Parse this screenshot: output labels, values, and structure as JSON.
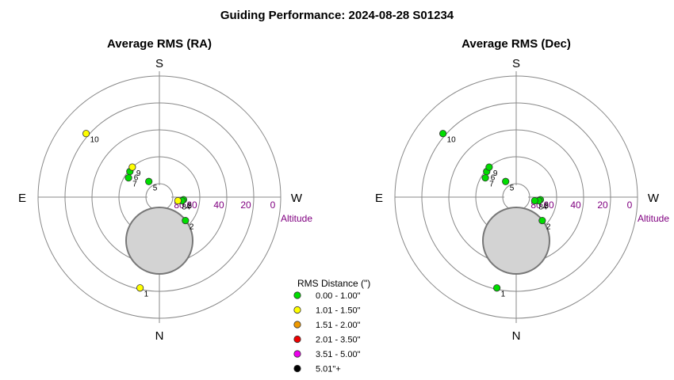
{
  "title": "Guiding Performance: 2024-08-28 S01234",
  "legend": {
    "title": "RMS Distance (\")",
    "items": [
      {
        "label": "0.00 - 1.00\"",
        "color": "#00dd00"
      },
      {
        "label": "1.01 - 1.50\"",
        "color": "#ffff00"
      },
      {
        "label": "1.51 - 2.00\"",
        "color": "#ee9900"
      },
      {
        "label": "2.01 - 3.50\"",
        "color": "#ee0000"
      },
      {
        "label": "3.51 - 5.00\"",
        "color": "#ee00ee"
      },
      {
        "label": "5.01\"+",
        "color": "#000000"
      }
    ]
  },
  "chart_data": [
    {
      "type": "scatter",
      "title": "Average RMS (RA)",
      "directions": {
        "top": "S",
        "bottom": "N",
        "left": "E",
        "right": "W"
      },
      "radial_axis_label": "Altitude",
      "altitude_ticks": [
        "80",
        "60",
        "40",
        "20",
        "0"
      ],
      "altitude_range": [
        0,
        90
      ],
      "points": [
        {
          "label": "1",
          "azimuth_deg": 168,
          "altitude_deg": 21,
          "color_class": 1
        },
        {
          "label": "2",
          "azimuth_deg": 228,
          "altitude_deg": 64,
          "color_class": 0
        },
        {
          "label": "3",
          "azimuth_deg": 264,
          "altitude_deg": 72,
          "color_class": 0
        },
        {
          "label": "4",
          "azimuth_deg": 261,
          "altitude_deg": 73,
          "color_class": 0
        },
        {
          "label": "5",
          "azimuth_deg": 34,
          "altitude_deg": 76,
          "color_class": 0
        },
        {
          "label": "6",
          "azimuth_deg": 49,
          "altitude_deg": 61,
          "color_class": 0
        },
        {
          "label": "7",
          "azimuth_deg": 58,
          "altitude_deg": 63,
          "color_class": 0
        },
        {
          "label": "8",
          "azimuth_deg": 259,
          "altitude_deg": 76,
          "color_class": 1
        },
        {
          "label": "9",
          "azimuth_deg": 42,
          "altitude_deg": 60,
          "color_class": 1
        },
        {
          "label": "10",
          "azimuth_deg": 49,
          "altitude_deg": 18,
          "color_class": 1
        }
      ]
    },
    {
      "type": "scatter",
      "title": "Average RMS (Dec)",
      "directions": {
        "top": "S",
        "bottom": "N",
        "left": "E",
        "right": "W"
      },
      "radial_axis_label": "Altitude",
      "altitude_ticks": [
        "80",
        "60",
        "40",
        "20",
        "0"
      ],
      "altitude_range": [
        0,
        90
      ],
      "points": [
        {
          "label": "1",
          "azimuth_deg": 168,
          "altitude_deg": 21,
          "color_class": 0
        },
        {
          "label": "2",
          "azimuth_deg": 228,
          "altitude_deg": 64,
          "color_class": 0
        },
        {
          "label": "3",
          "azimuth_deg": 264,
          "altitude_deg": 72,
          "color_class": 0
        },
        {
          "label": "4",
          "azimuth_deg": 261,
          "altitude_deg": 73,
          "color_class": 0
        },
        {
          "label": "5",
          "azimuth_deg": 34,
          "altitude_deg": 76,
          "color_class": 0
        },
        {
          "label": "6",
          "azimuth_deg": 49,
          "altitude_deg": 61,
          "color_class": 0
        },
        {
          "label": "7",
          "azimuth_deg": 58,
          "altitude_deg": 63,
          "color_class": 0
        },
        {
          "label": "8",
          "azimuth_deg": 259,
          "altitude_deg": 76,
          "color_class": 0
        },
        {
          "label": "9",
          "azimuth_deg": 42,
          "altitude_deg": 60,
          "color_class": 0
        },
        {
          "label": "10",
          "azimuth_deg": 49,
          "altitude_deg": 18,
          "color_class": 0
        }
      ]
    }
  ]
}
